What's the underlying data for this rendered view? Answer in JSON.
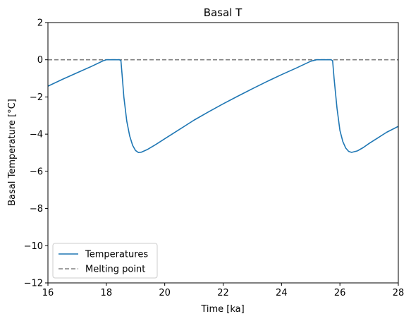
{
  "chart_data": {
    "type": "line",
    "title": "Basal T",
    "xlabel": "Time [ka]",
    "ylabel": "Basal Temperature [°C]",
    "xlim": [
      16,
      28
    ],
    "ylim": [
      -12,
      2
    ],
    "xticks": [
      16,
      18,
      20,
      22,
      24,
      26,
      28
    ],
    "yticks": [
      -12,
      -10,
      -8,
      -6,
      -4,
      -2,
      0,
      2
    ],
    "grid": false,
    "legend_position": "lower-left",
    "series": [
      {
        "name": "Temperatures",
        "color": "#1f77b4",
        "style": "solid",
        "x": [
          16.0,
          16.5,
          17.0,
          17.5,
          17.9,
          18.0,
          18.3,
          18.45,
          18.5,
          18.55,
          18.6,
          18.7,
          18.8,
          18.9,
          19.0,
          19.1,
          19.2,
          19.4,
          19.7,
          20.0,
          20.5,
          21.0,
          21.5,
          22.0,
          22.5,
          23.0,
          23.5,
          24.0,
          24.5,
          25.0,
          25.2,
          25.4,
          25.6,
          25.7,
          25.75,
          25.8,
          25.9,
          26.0,
          26.1,
          26.2,
          26.3,
          26.4,
          26.6,
          26.8,
          27.0,
          27.3,
          27.6,
          28.0
        ],
        "y": [
          -1.42,
          -1.05,
          -0.7,
          -0.35,
          -0.05,
          0.0,
          0.0,
          0.0,
          -0.05,
          -1.0,
          -2.0,
          -3.3,
          -4.1,
          -4.6,
          -4.88,
          -4.99,
          -4.97,
          -4.83,
          -4.55,
          -4.25,
          -3.75,
          -3.25,
          -2.8,
          -2.37,
          -1.96,
          -1.56,
          -1.17,
          -0.8,
          -0.45,
          -0.08,
          0.0,
          0.0,
          0.0,
          0.0,
          -0.05,
          -1.0,
          -2.6,
          -3.8,
          -4.4,
          -4.75,
          -4.93,
          -4.98,
          -4.9,
          -4.72,
          -4.5,
          -4.2,
          -3.9,
          -3.58
        ]
      },
      {
        "name": "Melting point",
        "color": "#808080",
        "style": "dashed",
        "x": [
          16,
          28
        ],
        "y": [
          0,
          0
        ]
      }
    ]
  }
}
